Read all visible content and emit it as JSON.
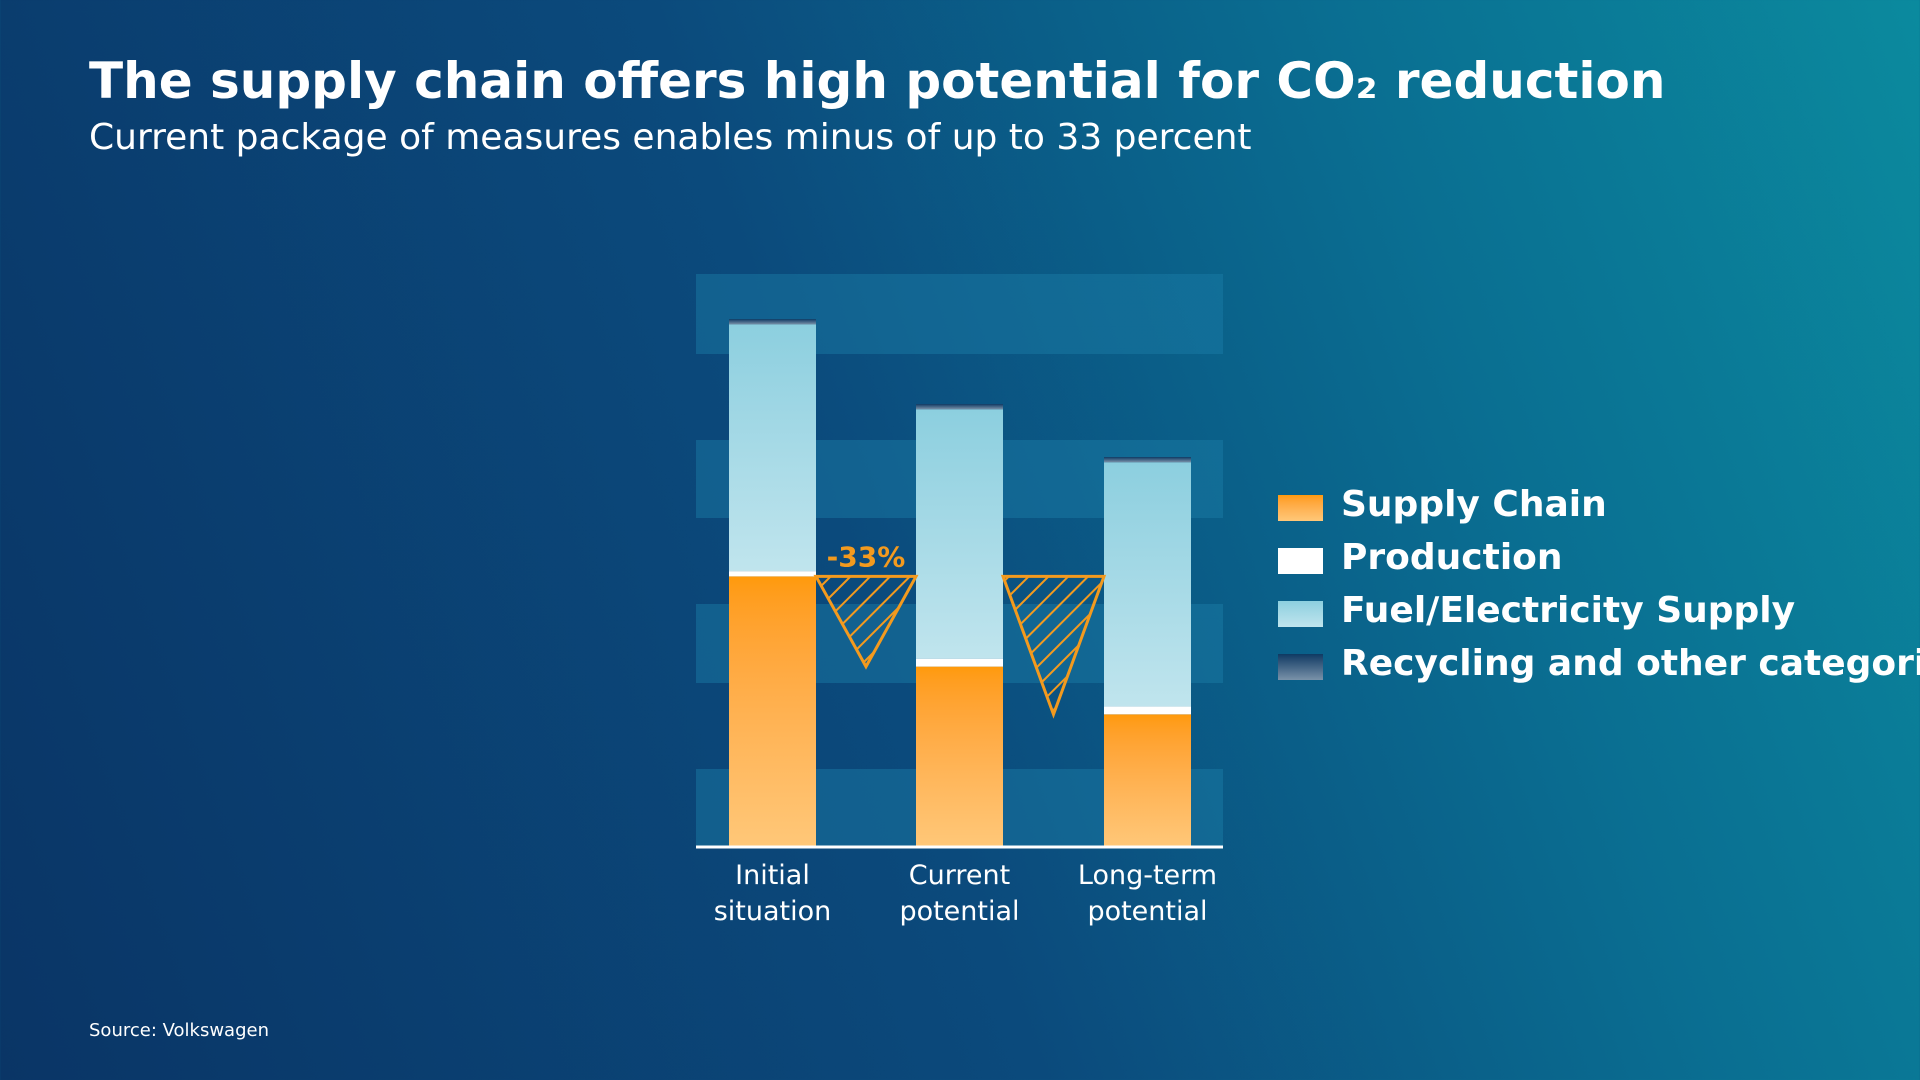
{
  "chart_data": {
    "type": "stacked_bar",
    "title": "The supply chain offers high potential for CO₂ reduction",
    "subtitle": "Current package of measures enables minus of up to 33 percent",
    "source": "Source: Volkswagen",
    "annotation": "-33%",
    "categories": [
      "Initial situation",
      "Current potential",
      "Long-term potential"
    ],
    "series": [
      {
        "name": "Supply Chain",
        "color": "#ff9a0a",
        "values": [
          51,
          34,
          25
        ]
      },
      {
        "name": "Production",
        "color": "#ffffff",
        "values": [
          1,
          1.5,
          1.5
        ]
      },
      {
        "name": "Fuel/Electricity Supply",
        "color": "#8ccfdf",
        "values": [
          46.5,
          47,
          46
        ]
      },
      {
        "name": "Recycling and other categories",
        "color": "#0d3a63",
        "values": [
          1,
          1,
          1
        ]
      }
    ],
    "ylim": [
      0,
      108
    ],
    "legend": "right"
  }
}
